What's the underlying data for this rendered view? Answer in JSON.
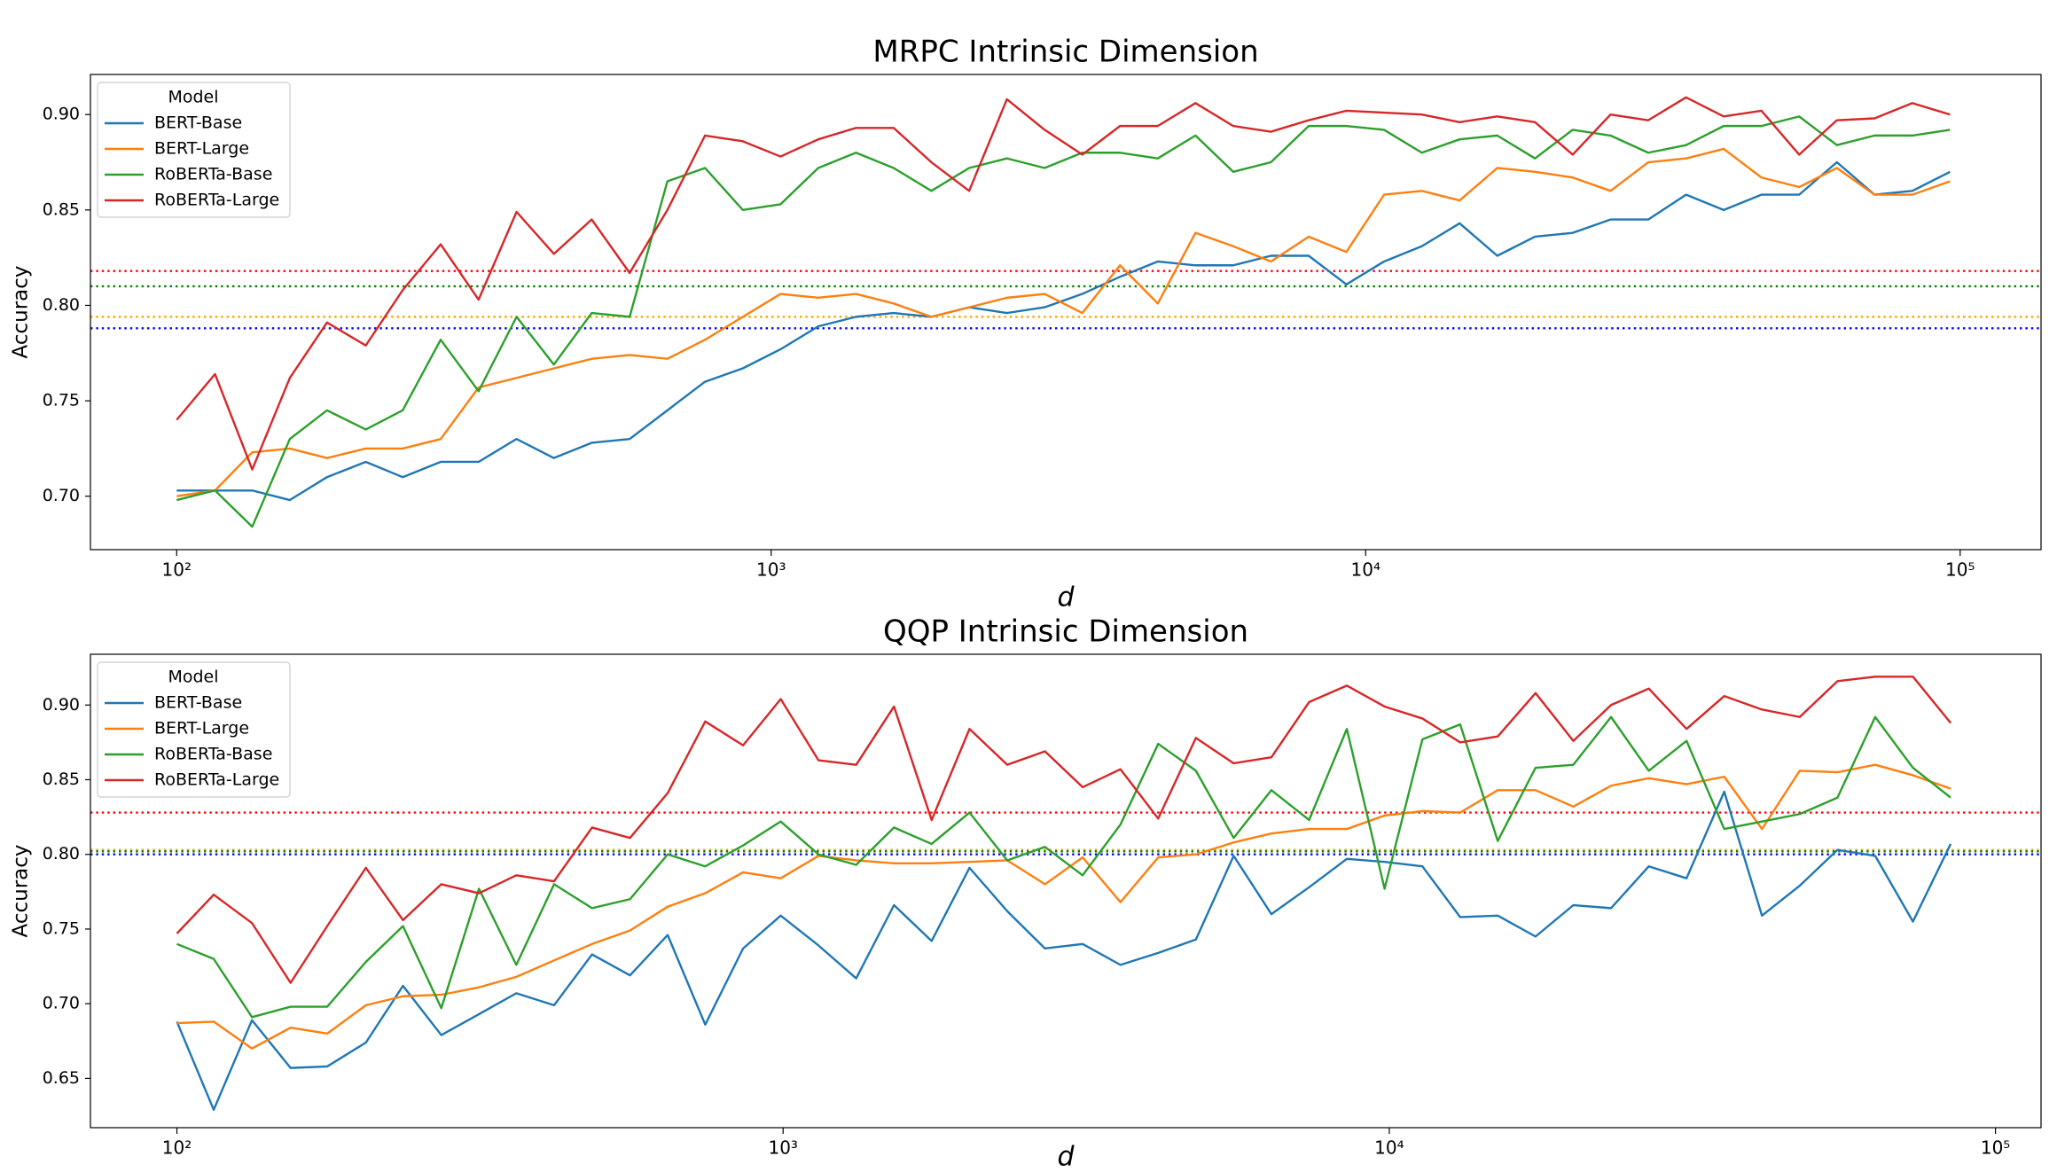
{
  "chart_data": [
    {
      "type": "line",
      "title": "MRPC Intrinsic Dimension",
      "xlabel": "d",
      "ylabel": "Accuracy",
      "xscale": "log",
      "xlim": [
        71.6,
        136800
      ],
      "ylim": [
        0.672,
        0.921
      ],
      "xticks": [
        {
          "value": 100,
          "label": "10²"
        },
        {
          "value": 1000,
          "label": "10³"
        },
        {
          "value": 10000,
          "label": "10⁴"
        },
        {
          "value": 100000,
          "label": "10⁵"
        }
      ],
      "yticks": [
        {
          "value": 0.7,
          "label": "0.70"
        },
        {
          "value": 0.75,
          "label": "0.75"
        },
        {
          "value": 0.8,
          "label": "0.80"
        },
        {
          "value": 0.85,
          "label": "0.85"
        },
        {
          "value": 0.9,
          "label": "0.90"
        }
      ],
      "legend_title": "Model",
      "legend": "upper left",
      "x": [
        100,
        116,
        134,
        155,
        179,
        208,
        240,
        278,
        322,
        373,
        431,
        499,
        578,
        669,
        774,
        896,
        1037,
        1200,
        1389,
        1607,
        1860,
        2153,
        2492,
        2884,
        3337,
        3862,
        4470,
        5173,
        5987,
        6929,
        8020,
        9280,
        10740,
        12430,
        14390,
        16650,
        19270,
        22300,
        25820,
        29880,
        34590,
        40020,
        46320,
        53610,
        62040,
        71800,
        83100,
        96160
      ],
      "series": [
        {
          "name": "BERT-Base",
          "color": "#1f77b4",
          "values": [
            0.703,
            0.703,
            0.703,
            0.698,
            0.71,
            0.718,
            0.71,
            0.718,
            0.718,
            0.73,
            0.72,
            0.728,
            0.73,
            0.745,
            0.76,
            0.767,
            0.777,
            0.789,
            0.794,
            0.796,
            0.794,
            0.799,
            0.796,
            0.799,
            0.806,
            0.815,
            0.823,
            0.821,
            0.821,
            0.826,
            0.826,
            0.811,
            0.823,
            0.831,
            0.843,
            0.826,
            0.836,
            0.838,
            0.845,
            0.845,
            0.858,
            0.85,
            0.858,
            0.858,
            0.875,
            0.858,
            0.86,
            0.87
          ]
        },
        {
          "name": "BERT-Large",
          "color": "#ff7f0e",
          "values": [
            0.7,
            0.703,
            0.723,
            0.725,
            0.72,
            0.725,
            0.725,
            0.73,
            0.757,
            0.762,
            0.767,
            0.772,
            0.774,
            0.772,
            0.782,
            0.794,
            0.806,
            0.804,
            0.806,
            0.801,
            0.794,
            0.799,
            0.804,
            0.806,
            0.796,
            0.821,
            0.801,
            0.838,
            0.831,
            0.823,
            0.836,
            0.828,
            0.858,
            0.86,
            0.855,
            0.872,
            0.87,
            0.867,
            0.86,
            0.875,
            0.877,
            0.882,
            0.867,
            0.862,
            0.872,
            0.858,
            0.858,
            0.865
          ]
        },
        {
          "name": "RoBERTa-Base",
          "color": "#2ca02c",
          "values": [
            0.698,
            0.703,
            0.684,
            0.73,
            0.745,
            0.735,
            0.745,
            0.782,
            0.755,
            0.794,
            0.769,
            0.796,
            0.794,
            0.865,
            0.872,
            0.85,
            0.853,
            0.872,
            0.88,
            0.872,
            0.86,
            0.872,
            0.877,
            0.872,
            0.88,
            0.88,
            0.877,
            0.889,
            0.87,
            0.875,
            0.894,
            0.894,
            0.892,
            0.88,
            0.887,
            0.889,
            0.877,
            0.892,
            0.889,
            0.88,
            0.884,
            0.894,
            0.894,
            0.899,
            0.884,
            0.889,
            0.889,
            0.892
          ]
        },
        {
          "name": "RoBERTa-Large",
          "color": "#d62728",
          "values": [
            0.74,
            0.764,
            0.714,
            0.762,
            0.791,
            0.779,
            0.808,
            0.832,
            0.803,
            0.849,
            0.827,
            0.845,
            0.817,
            0.85,
            0.889,
            0.886,
            0.878,
            0.887,
            0.893,
            0.893,
            0.875,
            0.86,
            0.908,
            0.892,
            0.879,
            0.894,
            0.894,
            0.906,
            0.894,
            0.891,
            0.897,
            0.902,
            0.901,
            0.9,
            0.896,
            0.899,
            0.896,
            0.879,
            0.9,
            0.897,
            0.909,
            0.899,
            0.902,
            0.879,
            0.897,
            0.898,
            0.906,
            0.9
          ]
        }
      ],
      "hlines": [
        {
          "value": 0.818,
          "color": "red"
        },
        {
          "value": 0.81,
          "color": "green"
        },
        {
          "value": 0.794,
          "color": "orange"
        },
        {
          "value": 0.788,
          "color": "blue"
        }
      ]
    },
    {
      "type": "line",
      "title": "QQP Intrinsic Dimension",
      "xlabel": "d",
      "ylabel": "Accuracy",
      "xscale": "log",
      "xlim": [
        72,
        118900
      ],
      "ylim": [
        0.617,
        0.934
      ],
      "xticks": [
        {
          "value": 100,
          "label": "10²"
        },
        {
          "value": 1000,
          "label": "10³"
        },
        {
          "value": 10000,
          "label": "10⁴"
        },
        {
          "value": 100000,
          "label": "10⁵"
        }
      ],
      "yticks": [
        {
          "value": 0.65,
          "label": "0.65"
        },
        {
          "value": 0.7,
          "label": "0.70"
        },
        {
          "value": 0.75,
          "label": "0.75"
        },
        {
          "value": 0.8,
          "label": "0.80"
        },
        {
          "value": 0.85,
          "label": "0.85"
        },
        {
          "value": 0.9,
          "label": "0.90"
        }
      ],
      "legend_title": "Model",
      "legend": "upper left",
      "x": [
        100,
        115,
        133,
        154,
        177,
        205,
        236,
        273,
        315,
        363,
        419,
        484,
        559,
        645,
        744,
        859,
        991,
        1144,
        1320,
        1524,
        1758,
        2030,
        2343,
        2704,
        3120,
        3602,
        4157,
        4797,
        5537,
        6390,
        7375,
        8511,
        9823,
        11340,
        13090,
        15100,
        17430,
        20120,
        23220,
        26800,
        30930,
        35690,
        41190,
        47540,
        54870,
        63330,
        73090,
        84360
      ],
      "series": [
        {
          "name": "BERT-Base",
          "color": "#1f77b4",
          "values": [
            0.688,
            0.629,
            0.689,
            0.657,
            0.658,
            0.674,
            0.712,
            0.679,
            0.693,
            0.707,
            0.699,
            0.733,
            0.719,
            0.746,
            0.686,
            0.737,
            0.759,
            0.739,
            0.717,
            0.766,
            0.742,
            0.791,
            0.762,
            0.737,
            0.74,
            0.726,
            0.734,
            0.743,
            0.799,
            0.76,
            0.778,
            0.797,
            0.795,
            0.792,
            0.758,
            0.759,
            0.745,
            0.766,
            0.764,
            0.792,
            0.784,
            0.842,
            0.759,
            0.779,
            0.803,
            0.799,
            0.755,
            0.807
          ]
        },
        {
          "name": "BERT-Large",
          "color": "#ff7f0e",
          "values": [
            0.687,
            0.688,
            0.67,
            0.684,
            0.68,
            0.699,
            0.705,
            0.706,
            0.711,
            0.718,
            0.729,
            0.74,
            0.749,
            0.765,
            0.774,
            0.788,
            0.784,
            0.799,
            0.796,
            0.794,
            0.794,
            0.795,
            0.796,
            0.78,
            0.798,
            0.768,
            0.798,
            0.8,
            0.808,
            0.814,
            0.817,
            0.817,
            0.826,
            0.829,
            0.828,
            0.843,
            0.843,
            0.832,
            0.846,
            0.851,
            0.847,
            0.852,
            0.817,
            0.856,
            0.855,
            0.86,
            0.853,
            0.844
          ]
        },
        {
          "name": "RoBERTa-Base",
          "color": "#2ca02c",
          "values": [
            0.74,
            0.73,
            0.691,
            0.698,
            0.698,
            0.728,
            0.752,
            0.697,
            0.777,
            0.726,
            0.78,
            0.764,
            0.77,
            0.8,
            0.792,
            0.806,
            0.822,
            0.8,
            0.793,
            0.818,
            0.807,
            0.828,
            0.796,
            0.805,
            0.786,
            0.82,
            0.874,
            0.856,
            0.811,
            0.843,
            0.823,
            0.884,
            0.777,
            0.877,
            0.887,
            0.809,
            0.858,
            0.86,
            0.892,
            0.856,
            0.876,
            0.817,
            0.822,
            0.827,
            0.838,
            0.892,
            0.858,
            0.838
          ]
        },
        {
          "name": "RoBERTa-Large",
          "color": "#d62728",
          "values": [
            0.747,
            0.773,
            0.754,
            0.714,
            0.752,
            0.791,
            0.756,
            0.78,
            0.774,
            0.786,
            0.782,
            0.818,
            0.811,
            0.841,
            0.889,
            0.873,
            0.904,
            0.863,
            0.86,
            0.899,
            0.823,
            0.884,
            0.86,
            0.869,
            0.845,
            0.857,
            0.824,
            0.878,
            0.861,
            0.865,
            0.902,
            0.913,
            0.899,
            0.891,
            0.875,
            0.879,
            0.908,
            0.876,
            0.9,
            0.911,
            0.884,
            0.906,
            0.897,
            0.892,
            0.916,
            0.919,
            0.919,
            0.888
          ]
        }
      ],
      "hlines": [
        {
          "value": 0.828,
          "color": "red"
        },
        {
          "value": 0.803,
          "color": "orange"
        },
        {
          "value": 0.802,
          "color": "green"
        },
        {
          "value": 0.8,
          "color": "blue"
        }
      ]
    }
  ]
}
